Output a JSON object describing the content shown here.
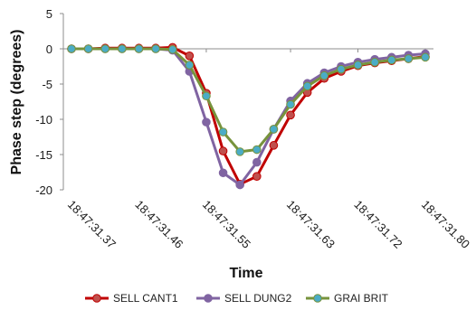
{
  "chart_data": {
    "type": "line",
    "title": "",
    "xlabel": "Time",
    "ylabel": "Phase step (degrees)",
    "ylim": [
      -20,
      5
    ],
    "yticks": [
      5,
      0,
      -5,
      -10,
      -15,
      -20
    ],
    "xtick_labels": [
      "18:47:31.37",
      "18:47:31.46",
      "18:47:31.55",
      "18:47:31.63",
      "18:47:31.72",
      "18:47:31.80"
    ],
    "grid": false,
    "legend_position": "bottom",
    "series": [
      {
        "name": "SELL CANT1",
        "line_color": "#c00000",
        "marker_color": "#c0504d",
        "values": [
          0.0,
          0.0,
          0.1,
          0.1,
          0.1,
          0.1,
          0.2,
          -1.0,
          -6.3,
          -14.5,
          -19.2,
          -18.1,
          -13.7,
          -9.4,
          -6.2,
          -4.2,
          -3.2,
          -2.4,
          -2.0,
          -1.7,
          -1.4,
          -1.1
        ]
      },
      {
        "name": "SELL DUNG2",
        "line_color": "#8064a2",
        "marker_color": "#8064a2",
        "values": [
          0.0,
          0.0,
          0.0,
          0.0,
          0.0,
          0.0,
          -0.2,
          -3.2,
          -10.4,
          -17.6,
          -19.3,
          -16.1,
          -11.4,
          -7.4,
          -4.9,
          -3.4,
          -2.5,
          -1.9,
          -1.5,
          -1.2,
          -0.9,
          -0.7
        ]
      },
      {
        "name": "GRAI BRIT",
        "line_color": "#77933c",
        "marker_color": "#4bacc6",
        "values": [
          0.0,
          0.0,
          0.0,
          0.0,
          0.0,
          0.0,
          -0.1,
          -2.3,
          -6.7,
          -11.8,
          -14.6,
          -14.3,
          -11.4,
          -7.9,
          -5.3,
          -3.8,
          -2.9,
          -2.3,
          -1.9,
          -1.6,
          -1.4,
          -1.2
        ]
      }
    ]
  }
}
